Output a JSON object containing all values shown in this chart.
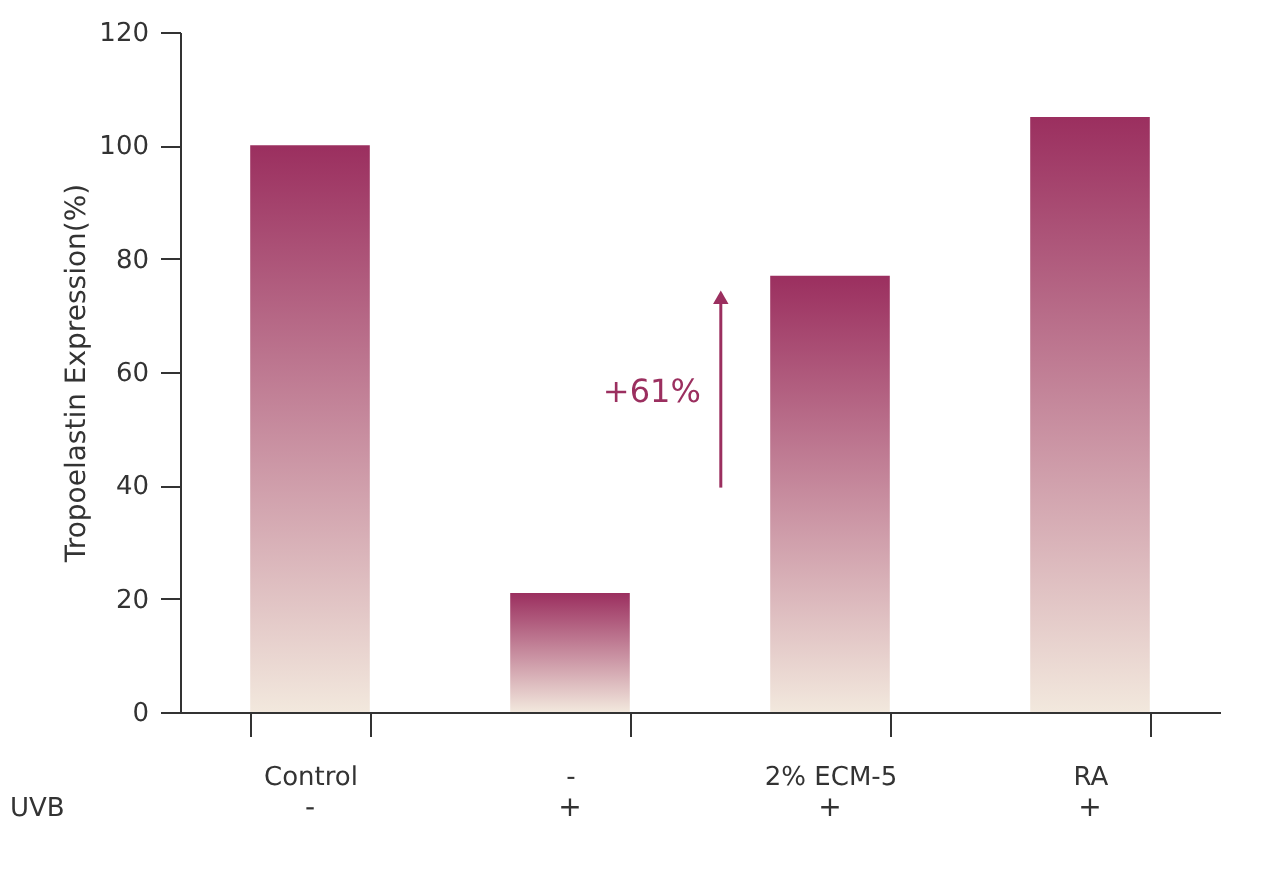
{
  "chart_data": {
    "type": "bar",
    "ylabel": "Tropoelastin Expression(%)",
    "categories": [
      "Control",
      "-",
      "2% ECM-5",
      "RA"
    ],
    "series": [
      {
        "color": "#9b2f5f",
        "values": [
          100,
          21,
          77,
          105
        ]
      }
    ],
    "ylim": [
      0,
      120
    ],
    "yticks": [
      0,
      20,
      40,
      60,
      80,
      100,
      120
    ],
    "grid": false,
    "annotations": [
      "+61%",
      "UVB",
      "-",
      "+",
      "+",
      "+"
    ]
  }
}
